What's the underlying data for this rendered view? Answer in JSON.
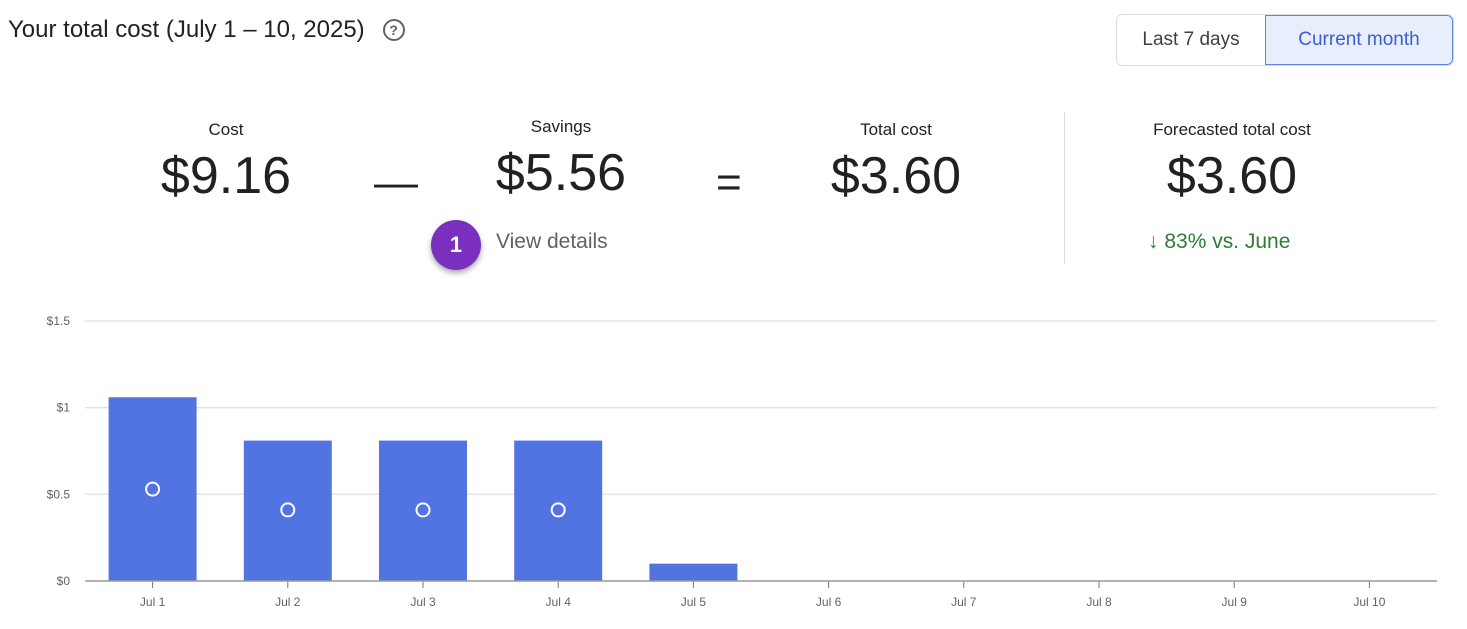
{
  "header": {
    "title": "Your total cost (July 1 – 10, 2025)",
    "help_icon": "?"
  },
  "range_toggle": {
    "options": [
      "Last 7 days",
      "Current month"
    ],
    "selected": "Current month"
  },
  "summary": {
    "cost": {
      "label": "Cost",
      "value": "$9.16"
    },
    "minus": "—",
    "savings": {
      "label": "Savings",
      "value": "$5.56",
      "link": "View details"
    },
    "equals": "=",
    "total": {
      "label": "Total cost",
      "value": "$3.60"
    },
    "forecast": {
      "label": "Forecasted total cost",
      "value": "$3.60",
      "trend": "83% vs. June",
      "trend_icon": "↓",
      "trend_color": "#2e7d32"
    }
  },
  "annotation_badge": "1",
  "chart_data": {
    "type": "bar",
    "categories": [
      "Jul 1",
      "Jul 2",
      "Jul 3",
      "Jul 4",
      "Jul 5",
      "Jul 6",
      "Jul 7",
      "Jul 8",
      "Jul 9",
      "Jul 10"
    ],
    "series": [
      {
        "values": [
          1.06,
          0.81,
          0.81,
          0.81,
          0.1,
          0,
          0,
          0,
          0,
          0
        ],
        "color": "#5274e3",
        "kind": "bar"
      },
      {
        "values": [
          0.53,
          0.41,
          0.41,
          0.41,
          null,
          null,
          null,
          null,
          null,
          null
        ],
        "kind": "point-marker"
      }
    ],
    "yticks": [
      "$0",
      "$0.5",
      "$1",
      "$1.5"
    ],
    "ytick_values": [
      0,
      0.5,
      1,
      1.5
    ],
    "ylim": [
      0,
      1.5
    ],
    "grid": true
  }
}
